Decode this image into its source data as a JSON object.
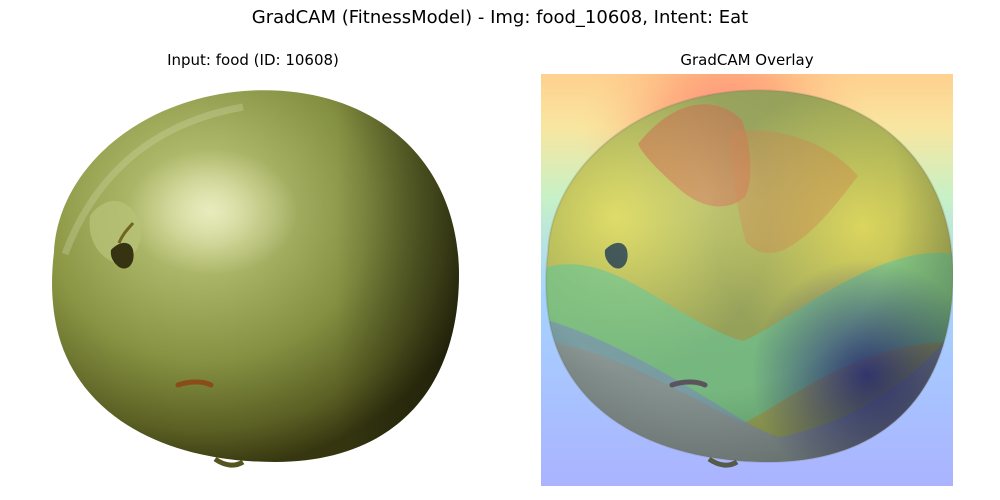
{
  "figure": {
    "title": "GradCAM (FitnessModel) - Img: food_10608, Intent: Eat"
  },
  "panels": [
    {
      "title": "Input: food (ID: 10608)"
    },
    {
      "title": "GradCAM Overlay"
    }
  ],
  "colors": {
    "apple_light": "#c9d48f",
    "apple_mid": "#8f9a48",
    "apple_dark": "#3d3f16",
    "heat_red": "#ff6f6f",
    "heat_yellow": "#f7ee63",
    "heat_green": "#56d98f",
    "heat_cyan": "#7de9e8",
    "heat_blue": "#8b95ff",
    "heat_navy": "#2e2f8f"
  }
}
